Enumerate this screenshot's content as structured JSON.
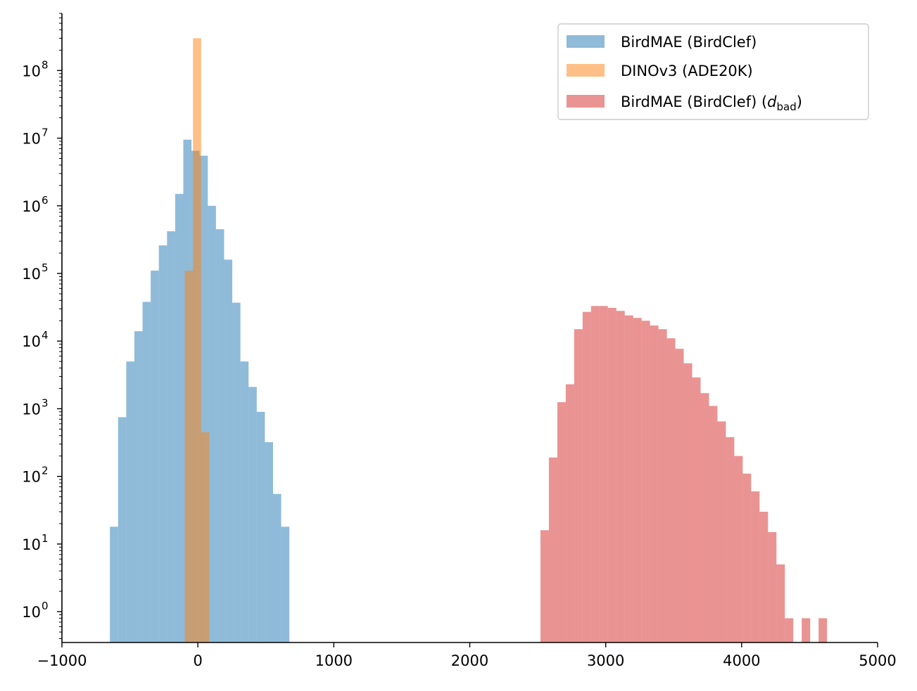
{
  "chart_data": {
    "type": "histogram",
    "title": "",
    "xlabel": "",
    "ylabel": "",
    "xlim": [
      -1000,
      5000
    ],
    "ylim": [
      0.35,
      700000000
    ],
    "yscale": "log",
    "grid": false,
    "legend_position": "top-right",
    "x_ticks": [
      {
        "value": -1000,
        "label": "−1000"
      },
      {
        "value": 0,
        "label": "0"
      },
      {
        "value": 1000,
        "label": "1000"
      },
      {
        "value": 2000,
        "label": "2000"
      },
      {
        "value": 3000,
        "label": "3000"
      },
      {
        "value": 4000,
        "label": "4000"
      },
      {
        "value": 5000,
        "label": "5000"
      }
    ],
    "y_ticks": [
      {
        "value": 1,
        "base": "10",
        "exp": "0"
      },
      {
        "value": 10,
        "base": "10",
        "exp": "1"
      },
      {
        "value": 100,
        "base": "10",
        "exp": "2"
      },
      {
        "value": 1000,
        "base": "10",
        "exp": "3"
      },
      {
        "value": 10000,
        "base": "10",
        "exp": "4"
      },
      {
        "value": 100000,
        "base": "10",
        "exp": "5"
      },
      {
        "value": 1000000,
        "base": "10",
        "exp": "6"
      },
      {
        "value": 10000000,
        "base": "10",
        "exp": "7"
      },
      {
        "value": 100000000,
        "base": "10",
        "exp": "8"
      }
    ],
    "series": [
      {
        "name": "BirdMAE (BirdClef)",
        "color": "#1f77b4",
        "alpha": 0.5,
        "bin_edges": [
          -647,
          -587,
          -527,
          -467,
          -407,
          -347,
          -287,
          -227,
          -167,
          -107,
          -47,
          13,
          73,
          133,
          193,
          253,
          313,
          373,
          433,
          493,
          553,
          613,
          673
        ],
        "counts": [
          18,
          750,
          5000,
          14000,
          38000,
          110000,
          260000,
          420000,
          1500000,
          9500000,
          6500000,
          5500000,
          1000000,
          450000,
          160000,
          37000,
          5000,
          2100,
          900,
          320,
          55,
          18
        ]
      },
      {
        "name": "DINOv3 (ADE20K)",
        "color": "#ff7f0e",
        "alpha": 0.5,
        "bin_edges": [
          -96,
          -36,
          24,
          84
        ],
        "counts": [
          110000,
          300000000,
          450
        ]
      },
      {
        "name": "BirdMAE (BirdClef) (d",
        "name_sub": "bad",
        "name_close": ")",
        "color": "#d62728",
        "alpha": 0.5,
        "bin_edges": [
          2520,
          2582,
          2644,
          2706,
          2768,
          2830,
          2892,
          2954,
          3016,
          3078,
          3140,
          3202,
          3264,
          3326,
          3388,
          3450,
          3512,
          3574,
          3636,
          3698,
          3760,
          3822,
          3884,
          3946,
          4008,
          4070,
          4132,
          4194,
          4256,
          4318,
          4380,
          4442,
          4504,
          4566,
          4628
        ],
        "counts": [
          16,
          190,
          1250,
          2300,
          15000,
          27000,
          33000,
          33000,
          31000,
          28000,
          24000,
          22000,
          20000,
          17000,
          15000,
          11000,
          7700,
          4700,
          2900,
          1700,
          1100,
          650,
          380,
          200,
          110,
          60,
          30,
          15,
          5,
          0.8,
          0,
          0.8,
          0,
          0.8
        ]
      }
    ]
  }
}
